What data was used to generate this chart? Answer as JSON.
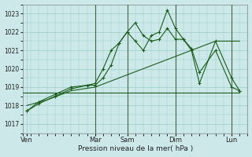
{
  "background_color": "#cce8e8",
  "grid_color": "#99cccc",
  "line_color": "#1a5e1a",
  "xlabel": "Pression niveau de la mer( hPa )",
  "ylim": [
    1016.5,
    1023.5
  ],
  "yticks": [
    1017,
    1018,
    1019,
    1020,
    1021,
    1022,
    1023
  ],
  "xlim": [
    0,
    28
  ],
  "day_labels": [
    "Ven",
    "Mar",
    "Sam",
    "Dim",
    "Lun"
  ],
  "day_positions": [
    0.5,
    9,
    13,
    19,
    26
  ],
  "vline_positions": [
    9,
    13,
    19,
    26
  ],
  "series": [
    {
      "x": [
        0,
        1,
        2,
        3,
        4,
        5,
        6,
        7,
        8,
        9,
        10,
        11,
        12,
        13,
        14,
        15,
        16,
        17,
        18,
        19,
        20,
        21,
        22,
        23,
        24,
        25,
        26,
        27
      ],
      "y": [
        1018.7,
        1018.7,
        1018.7,
        1018.7,
        1018.7,
        1018.7,
        1018.7,
        1018.7,
        1018.7,
        1018.7,
        1018.7,
        1018.7,
        1018.7,
        1018.7,
        1018.7,
        1018.7,
        1018.7,
        1018.7,
        1018.7,
        1018.7,
        1018.7,
        1018.7,
        1018.7,
        1018.7,
        1018.7,
        1018.7,
        1018.7,
        1018.7
      ],
      "marker": false
    },
    {
      "x": [
        0.5,
        2,
        4,
        6,
        8,
        9,
        10,
        11,
        12,
        13,
        14,
        15,
        16,
        17,
        18,
        19,
        20,
        21,
        22,
        24,
        26,
        27
      ],
      "y": [
        1017.7,
        1018.1,
        1018.5,
        1018.9,
        1019.1,
        1019.1,
        1019.5,
        1020.2,
        1021.4,
        1022.0,
        1021.5,
        1021.0,
        1021.8,
        1022.0,
        1023.2,
        1022.2,
        1021.6,
        1021.1,
        1019.8,
        1021.0,
        1019.0,
        1018.8
      ],
      "marker": true
    },
    {
      "x": [
        0.5,
        2,
        4,
        6,
        8,
        9,
        10,
        11,
        12,
        13,
        14,
        15,
        16,
        17,
        18,
        19,
        20,
        21,
        22,
        24,
        26,
        27
      ],
      "y": [
        1017.7,
        1018.2,
        1018.6,
        1019.0,
        1019.1,
        1019.2,
        1020.0,
        1021.0,
        1021.4,
        1022.0,
        1022.5,
        1021.8,
        1021.5,
        1021.6,
        1022.2,
        1021.6,
        1021.6,
        1021.0,
        1019.2,
        1021.5,
        1019.5,
        1018.8
      ],
      "marker": true
    },
    {
      "x": [
        0.5,
        3,
        6,
        9,
        12,
        15,
        18,
        21,
        24,
        27
      ],
      "y": [
        1018.0,
        1018.3,
        1018.8,
        1019.0,
        1019.5,
        1020.0,
        1020.5,
        1021.0,
        1021.5,
        1021.5
      ],
      "marker": false
    }
  ]
}
